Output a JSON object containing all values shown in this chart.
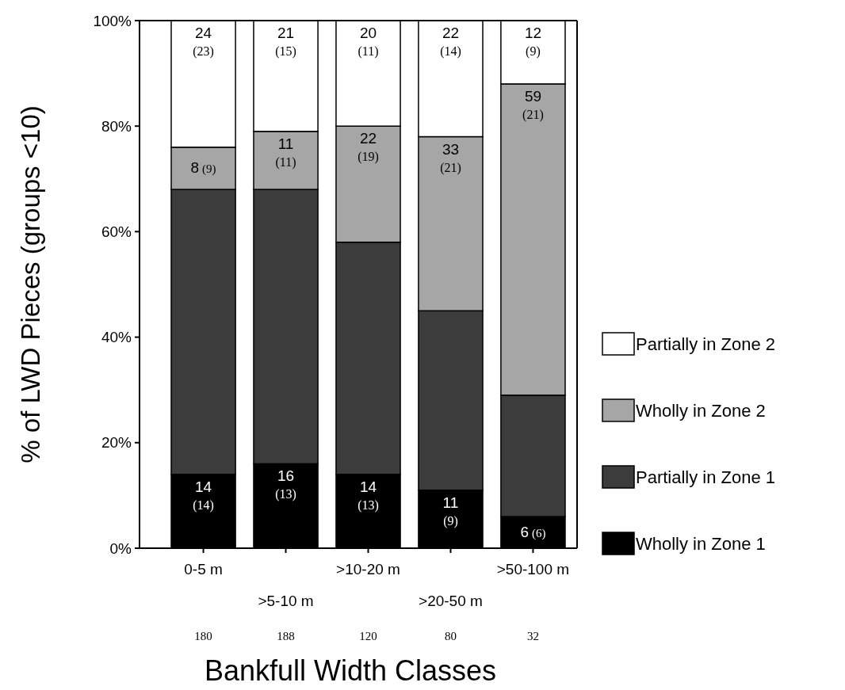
{
  "chart_data": {
    "type": "bar",
    "stacked": true,
    "xlabel": "Bankfull Width Classes",
    "ylabel": "% of LWD Pieces (groups <10)",
    "categories": [
      "0-5 m",
      ">5-10 m",
      ">10-20 m",
      ">20-50 m",
      ">50-100 m"
    ],
    "series": [
      {
        "name": "Wholly in Zone 1",
        "color": "#000000",
        "values": [
          14,
          16,
          14,
          11,
          6
        ],
        "value_labels": [
          "14 (14)",
          "16 (13)",
          "14 (13)",
          "11 (9)",
          "6 (6)"
        ]
      },
      {
        "name": "Partially in Zone 1",
        "color": "#3c3c3c",
        "values": [
          54,
          52,
          44,
          34,
          23
        ],
        "value_labels": [
          null,
          null,
          null,
          null,
          null
        ]
      },
      {
        "name": "Wholly in Zone 2",
        "color": "#a6a6a6",
        "values": [
          8,
          11,
          22,
          33,
          59
        ],
        "value_labels": [
          "8 (9)",
          "11 (11)",
          "22 (19)",
          "33 (21)",
          "59 (21)"
        ]
      },
      {
        "name": "Partially in Zone 2",
        "color": "#ffffff",
        "values": [
          24,
          21,
          20,
          22,
          12
        ],
        "value_labels": [
          "24 (23)",
          "21 (15)",
          "20 (11)",
          "22 (14)",
          "12 (9)"
        ]
      }
    ],
    "ylim": [
      0,
      100
    ],
    "yticks": [
      {
        "value": 0,
        "label": "0%"
      },
      {
        "value": 20,
        "label": "20%"
      },
      {
        "value": 40,
        "label": "40%"
      },
      {
        "value": 60,
        "label": "60%"
      },
      {
        "value": 80,
        "label": "80%"
      },
      {
        "value": 100,
        "label": "100%"
      }
    ],
    "annotations": [
      "180",
      "188",
      "120",
      "80",
      "32"
    ],
    "legend": "right",
    "grid": false
  }
}
